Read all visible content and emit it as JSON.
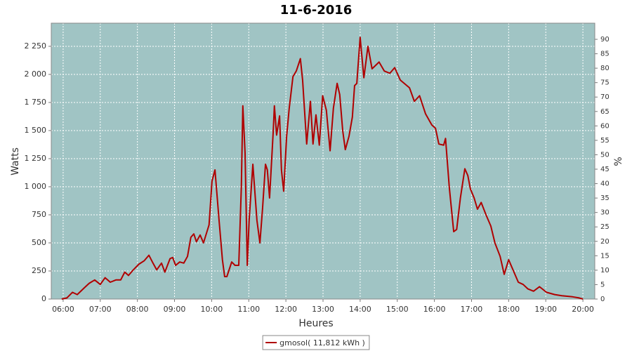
{
  "chart_data": {
    "type": "line",
    "title": "11-6-2016",
    "x_label": "Heures",
    "y_label": "Watts",
    "y2_label": "%",
    "x": [
      5.96,
      6.1,
      6.25,
      6.38,
      6.57,
      6.7,
      6.85,
      7.0,
      7.13,
      7.27,
      7.42,
      7.55,
      7.66,
      7.76,
      7.89,
      8.04,
      8.18,
      8.31,
      8.42,
      8.52,
      8.65,
      8.74,
      8.88,
      8.95,
      9.03,
      9.14,
      9.25,
      9.35,
      9.44,
      9.52,
      9.59,
      9.69,
      9.78,
      9.93,
      10.01,
      10.09,
      10.2,
      10.29,
      10.35,
      10.41,
      10.54,
      10.63,
      10.73,
      10.8,
      10.84,
      10.9,
      10.96,
      11.01,
      11.11,
      11.22,
      11.3,
      11.37,
      11.45,
      11.5,
      11.56,
      11.66,
      11.69,
      11.75,
      11.83,
      11.88,
      11.94,
      12.02,
      12.09,
      12.19,
      12.28,
      12.39,
      12.45,
      12.56,
      12.66,
      12.73,
      12.81,
      12.9,
      12.99,
      13.09,
      13.19,
      13.28,
      13.38,
      13.45,
      13.53,
      13.6,
      13.7,
      13.79,
      13.85,
      13.91,
      14.0,
      14.1,
      14.21,
      14.32,
      14.51,
      14.65,
      14.8,
      14.93,
      15.08,
      15.33,
      15.46,
      15.6,
      15.76,
      15.93,
      16.03,
      16.12,
      16.25,
      16.3,
      16.4,
      16.52,
      16.6,
      16.7,
      16.82,
      16.9,
      16.97,
      17.07,
      17.16,
      17.26,
      17.39,
      17.52,
      17.63,
      17.77,
      17.88,
      18.0,
      18.13,
      18.26,
      18.39,
      18.52,
      18.67,
      18.83,
      19.02,
      19.24,
      19.43,
      19.72,
      19.9,
      20.0
    ],
    "series": [
      {
        "name": "gmosol( 11,812 kWh )",
        "color": "#b00000",
        "values": [
          0,
          10,
          60,
          40,
          100,
          140,
          170,
          130,
          190,
          150,
          170,
          170,
          240,
          210,
          260,
          310,
          340,
          390,
          320,
          260,
          320,
          240,
          360,
          370,
          300,
          330,
          320,
          380,
          550,
          580,
          510,
          570,
          500,
          660,
          1050,
          1150,
          700,
          350,
          200,
          200,
          330,
          300,
          300,
          1000,
          1720,
          1300,
          300,
          700,
          1200,
          700,
          500,
          800,
          1200,
          1150,
          900,
          1500,
          1720,
          1460,
          1630,
          1150,
          960,
          1450,
          1700,
          1980,
          2030,
          2140,
          1950,
          1380,
          1760,
          1380,
          1640,
          1370,
          1810,
          1680,
          1320,
          1700,
          1920,
          1820,
          1500,
          1330,
          1450,
          1620,
          1900,
          1920,
          2330,
          1970,
          2250,
          2050,
          2110,
          2030,
          2010,
          2060,
          1950,
          1880,
          1760,
          1810,
          1650,
          1550,
          1520,
          1380,
          1370,
          1430,
          1000,
          600,
          620,
          900,
          1160,
          1100,
          980,
          900,
          800,
          860,
          750,
          650,
          500,
          380,
          220,
          350,
          250,
          150,
          130,
          90,
          70,
          110,
          60,
          40,
          30,
          20,
          10,
          0
        ]
      }
    ],
    "xlim": [
      5.68,
      20.32
    ],
    "xticks": [
      {
        "value": 6,
        "label": "06:00"
      },
      {
        "value": 7,
        "label": "07:00"
      },
      {
        "value": 8,
        "label": "08:00"
      },
      {
        "value": 9,
        "label": "09:00"
      },
      {
        "value": 10,
        "label": "10:00"
      },
      {
        "value": 11,
        "label": "11:00"
      },
      {
        "value": 12,
        "label": "12:00"
      },
      {
        "value": 13,
        "label": "13:00"
      },
      {
        "value": 14,
        "label": "14:00"
      },
      {
        "value": 15,
        "label": "15:00"
      },
      {
        "value": 16,
        "label": "16:00"
      },
      {
        "value": 17,
        "label": "17:00"
      },
      {
        "value": 18,
        "label": "18:00"
      },
      {
        "value": 19,
        "label": "19:00"
      },
      {
        "value": 20,
        "label": "20:00"
      }
    ],
    "ylim": [
      0,
      2456
    ],
    "yticks": [
      0,
      250,
      500,
      750,
      {
        "value": 1000,
        "label": "1 000"
      },
      {
        "value": 1250,
        "label": "1 250"
      },
      {
        "value": 1500,
        "label": "1 500"
      },
      {
        "value": 1750,
        "label": "1 750"
      },
      {
        "value": 2000,
        "label": "2 000"
      },
      {
        "value": 2250,
        "label": "2 250"
      }
    ],
    "y2lim": [
      0,
      95.6
    ],
    "y2ticks": [
      0,
      5,
      10,
      15,
      20,
      25,
      30,
      35,
      40,
      45,
      50,
      55,
      60,
      65,
      70,
      75,
      80,
      85,
      90
    ],
    "grid": true,
    "legend": "bottom",
    "background": "#a0c4c4"
  }
}
